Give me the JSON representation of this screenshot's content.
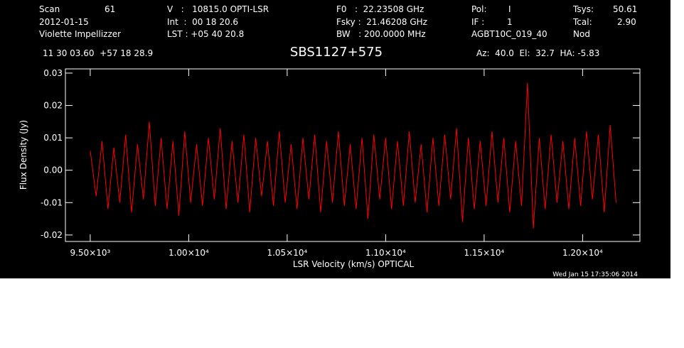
{
  "header": {
    "scan_label": "Scan",
    "scan": "61",
    "velocity": "V   :   10815.0 OPTI-LSR",
    "f0": "F0   :  22.23508 GHz",
    "pol_label": "Pol:",
    "pol": "I",
    "tsys_label": "Tsys:",
    "tsys": "50.61",
    "date": "2012-01-15",
    "int": "Int  :  00 18 20.6",
    "fsky": "Fsky :  21.46208 GHz",
    "if_label": "IF :",
    "if": "1",
    "tcal_label": "Tcal:",
    "tcal": "2.90",
    "observer": "Violette Impellizzer",
    "lst": "LST : +05 40 20.8",
    "bw": "BW   : 200.0000 MHz",
    "project": "AGBT10C_019_40",
    "proc": "Nod",
    "coords": "11 30 03.60  +57 18 28.9",
    "azel": "Az:  40.0  El:  32.7  HA: -5.83",
    "timestamp": "Wed Jan 15 17:35:06 2014"
  },
  "chart_data": {
    "type": "line",
    "title": "SBS1127+575",
    "x_label": "LSR Velocity (km/s) OPTICAL",
    "y_label": "Flux Density (Jy)",
    "xlim": [
      9374,
      12291
    ],
    "ylim": [
      -0.022,
      0.0313
    ],
    "xticks": [
      {
        "value": 9500,
        "label": "9.50×10³"
      },
      {
        "value": 10000,
        "label": "1.00×10⁴"
      },
      {
        "value": 10500,
        "label": "1.05×10⁴"
      },
      {
        "value": 11000,
        "label": "1.10×10⁴"
      },
      {
        "value": 11500,
        "label": "1.15×10⁴"
      },
      {
        "value": 12000,
        "label": "1.20×10⁴"
      }
    ],
    "yticks": [
      -0.02,
      -0.01,
      {
        "value": 0,
        "label": "0.00"
      },
      0.01,
      0.02,
      0.03
    ],
    "series": [
      {
        "color": "#ff0000",
        "x": [
          9500,
          9530,
          9560,
          9590,
          9620,
          9650,
          9680,
          9710,
          9740,
          9770,
          9800,
          9830,
          9860,
          9890,
          9920,
          9950,
          9980,
          10010,
          10040,
          10070,
          10100,
          10130,
          10160,
          10190,
          10220,
          10250,
          10280,
          10310,
          10340,
          10370,
          10400,
          10430,
          10460,
          10490,
          10520,
          10550,
          10580,
          10610,
          10640,
          10670,
          10700,
          10730,
          10760,
          10790,
          10820,
          10850,
          10880,
          10910,
          10940,
          10970,
          11000,
          11030,
          11060,
          11090,
          11120,
          11150,
          11180,
          11210,
          11240,
          11270,
          11300,
          11330,
          11360,
          11390,
          11420,
          11450,
          11480,
          11510,
          11540,
          11570,
          11600,
          11630,
          11660,
          11690,
          11720,
          11750,
          11780,
          11810,
          11840,
          11870,
          11900,
          11930,
          11960,
          11990,
          12020,
          12050,
          12080,
          12110,
          12140,
          12170
        ],
        "values": [
          0.006,
          -0.008,
          0.009,
          -0.012,
          0.007,
          -0.01,
          0.011,
          -0.013,
          0.008,
          -0.009,
          0.015,
          -0.011,
          0.01,
          -0.012,
          0.009,
          -0.014,
          0.012,
          -0.01,
          0.008,
          -0.011,
          0.01,
          -0.009,
          0.013,
          -0.012,
          0.009,
          -0.01,
          0.011,
          -0.013,
          0.01,
          -0.008,
          0.009,
          -0.011,
          0.012,
          -0.01,
          0.008,
          -0.012,
          0.01,
          -0.009,
          0.011,
          -0.013,
          0.009,
          -0.01,
          0.012,
          -0.011,
          0.008,
          -0.012,
          0.01,
          -0.015,
          0.011,
          -0.009,
          0.01,
          -0.012,
          0.009,
          -0.011,
          0.012,
          -0.01,
          0.008,
          -0.013,
          0.01,
          -0.011,
          0.011,
          -0.009,
          0.013,
          -0.016,
          0.01,
          -0.012,
          0.009,
          -0.011,
          0.012,
          -0.01,
          0.01,
          -0.013,
          0.009,
          -0.011,
          0.027,
          -0.018,
          0.01,
          -0.012,
          0.011,
          -0.01,
          0.009,
          -0.012,
          0.01,
          -0.011,
          0.012,
          -0.009,
          0.011,
          -0.013,
          0.014,
          -0.01
        ]
      }
    ]
  }
}
